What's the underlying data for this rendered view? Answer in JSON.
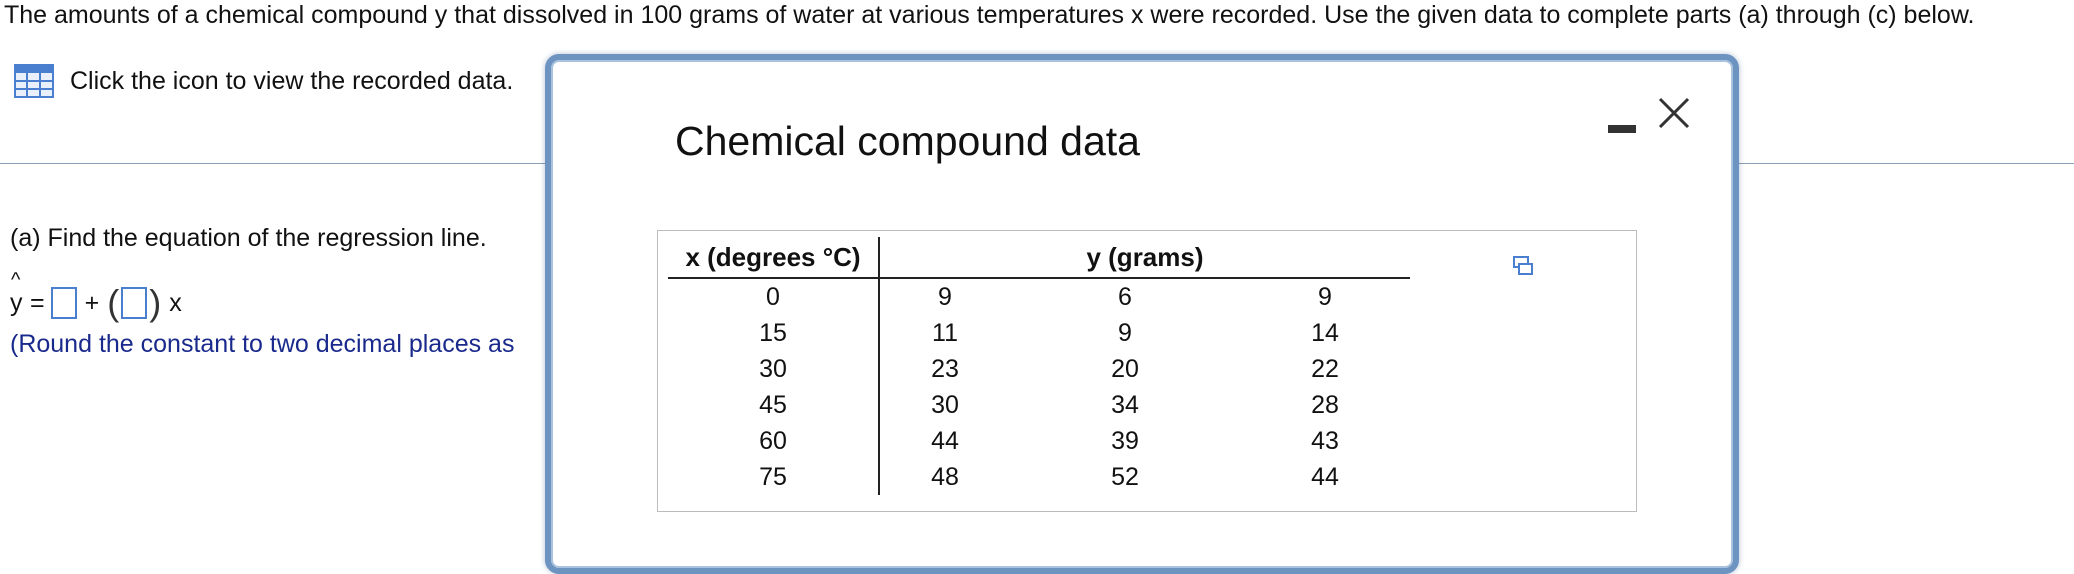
{
  "problem": {
    "text": "The amounts of a chemical compound y that dissolved in 100 grams of water at various temperatures x were recorded. Use the given data to complete parts (a) through (c) below."
  },
  "data_link": {
    "label": "Click the icon to view the recorded data.",
    "icon": "table-grid-icon"
  },
  "part_a": {
    "prompt": "(a) Find the equation of the regression line.",
    "yhat": "y",
    "hat": "^",
    "equals": "=",
    "plus": "+",
    "open_paren": "(",
    "close_paren": ")",
    "x": "x",
    "note": "(Round the constant to two decimal places as"
  },
  "dialog": {
    "title": "Chemical compound data",
    "minimize_icon": "minimize-icon",
    "close_icon": "close-icon",
    "table": {
      "header_x": "x (degrees °C)",
      "header_y": "y (grams)",
      "rows": [
        {
          "x": "0",
          "y": [
            "9",
            "6",
            "9"
          ]
        },
        {
          "x": "15",
          "y": [
            "11",
            "9",
            "14"
          ]
        },
        {
          "x": "30",
          "y": [
            "23",
            "20",
            "22"
          ]
        },
        {
          "x": "45",
          "y": [
            "30",
            "34",
            "28"
          ]
        },
        {
          "x": "60",
          "y": [
            "44",
            "39",
            "43"
          ]
        },
        {
          "x": "75",
          "y": [
            "48",
            "52",
            "44"
          ]
        }
      ]
    },
    "copy_icon": "copy-icon"
  },
  "colors": {
    "accent": "#4a7fd0",
    "dialog_border": "#6d93c0",
    "note_text": "#1a2a8c"
  }
}
